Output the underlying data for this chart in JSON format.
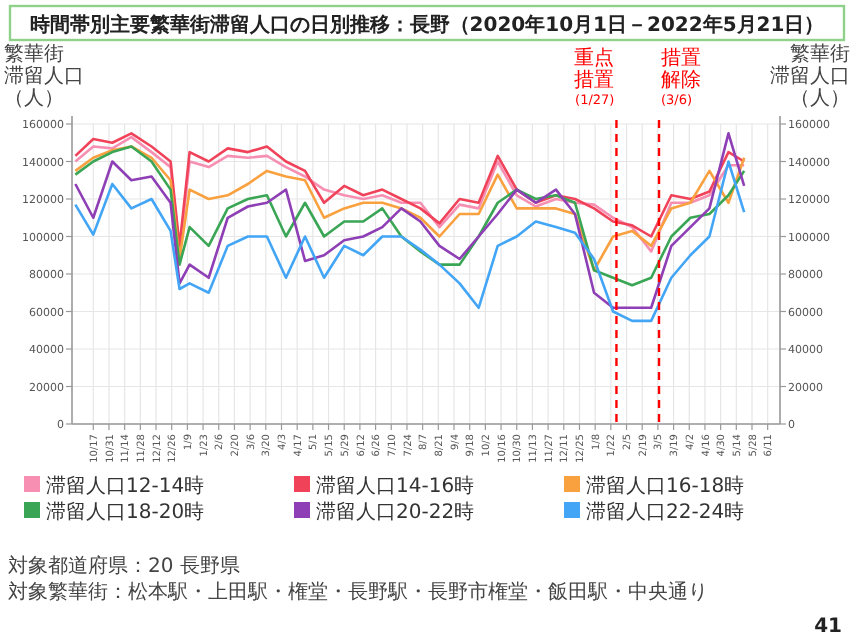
{
  "chart_data": {
    "type": "line",
    "title": "時間帯別主要繁華街滞留人口の日別推移：長野（2020年10月1日－2022年5月21日）",
    "ylabel": "繁華街滞留人口（人）",
    "y2label": "繁華街滞留人口（人）",
    "x": [
      "2020-10-01",
      "2020-10-17",
      "2020-11-03",
      "2020-11-20",
      "2020-12-08",
      "2020-12-25",
      "2021-01-02",
      "2021-01-11",
      "2021-01-28",
      "2021-02-14",
      "2021-03-04",
      "2021-03-21",
      "2021-04-07",
      "2021-04-24",
      "2021-05-11",
      "2021-05-29",
      "2021-06-15",
      "2021-07-02",
      "2021-07-19",
      "2021-08-05",
      "2021-08-22",
      "2021-09-09",
      "2021-09-26",
      "2021-10-13",
      "2021-10-30",
      "2021-11-16",
      "2021-12-04",
      "2021-12-21",
      "2022-01-07",
      "2022-01-24",
      "2022-02-10",
      "2022-02-27",
      "2022-03-17",
      "2022-04-03",
      "2022-04-20",
      "2022-05-07",
      "2022-05-21"
    ],
    "series": [
      {
        "name": "滞留人口12-14時",
        "color": "#f78fb3",
        "values": [
          140000,
          148000,
          147000,
          153000,
          145000,
          137000,
          92000,
          140000,
          137000,
          143000,
          142000,
          143000,
          137000,
          132000,
          125000,
          122000,
          120000,
          122000,
          118000,
          118000,
          105000,
          117000,
          115000,
          140000,
          122000,
          116000,
          120000,
          118000,
          117000,
          110000,
          105000,
          92000,
          118000,
          118000,
          122000,
          138000,
          138000
        ]
      },
      {
        "name": "滞留人口14-16時",
        "color": "#f0435a",
        "values": [
          143000,
          152000,
          150000,
          155000,
          148000,
          140000,
          95000,
          145000,
          140000,
          147000,
          145000,
          148000,
          140000,
          135000,
          118000,
          127000,
          122000,
          125000,
          120000,
          115000,
          107000,
          120000,
          118000,
          143000,
          125000,
          118000,
          122000,
          120000,
          115000,
          108000,
          106000,
          100000,
          122000,
          120000,
          124000,
          145000,
          140000
        ]
      },
      {
        "name": "滞留人口16-18時",
        "color": "#f9a03f",
        "values": [
          135000,
          142000,
          146000,
          148000,
          142000,
          130000,
          88000,
          125000,
          120000,
          122000,
          128000,
          135000,
          132000,
          130000,
          110000,
          115000,
          118000,
          118000,
          115000,
          110000,
          100000,
          112000,
          112000,
          133000,
          115000,
          115000,
          115000,
          112000,
          82000,
          100000,
          103000,
          95000,
          115000,
          118000,
          135000,
          118000,
          142000
        ]
      },
      {
        "name": "滞留人口18-20時",
        "color": "#3aa655",
        "values": [
          133000,
          140000,
          145000,
          148000,
          140000,
          125000,
          85000,
          105000,
          95000,
          115000,
          120000,
          122000,
          100000,
          118000,
          100000,
          108000,
          108000,
          115000,
          100000,
          92000,
          85000,
          85000,
          100000,
          118000,
          125000,
          120000,
          122000,
          118000,
          82000,
          78000,
          74000,
          78000,
          100000,
          110000,
          112000,
          122000,
          135000
        ]
      },
      {
        "name": "滞留人口20-22時",
        "color": "#8e3fb5",
        "values": [
          128000,
          110000,
          140000,
          130000,
          132000,
          118000,
          75000,
          85000,
          78000,
          110000,
          116000,
          118000,
          125000,
          87000,
          90000,
          98000,
          100000,
          105000,
          115000,
          108000,
          95000,
          88000,
          100000,
          112000,
          125000,
          118000,
          125000,
          112000,
          70000,
          62000,
          62000,
          62000,
          95000,
          105000,
          115000,
          155000,
          127000
        ]
      },
      {
        "name": "滞留人口22-24時",
        "color": "#42a5f5",
        "values": [
          117000,
          101000,
          128000,
          115000,
          120000,
          103000,
          72000,
          75000,
          70000,
          95000,
          100000,
          100000,
          78000,
          100000,
          78000,
          95000,
          90000,
          100000,
          100000,
          93000,
          85000,
          75000,
          62000,
          95000,
          100000,
          108000,
          105000,
          102000,
          88000,
          60000,
          55000,
          55000,
          78000,
          90000,
          100000,
          140000,
          113000
        ]
      }
    ],
    "xlim": [
      "2020-09-28",
      "2022-06-22"
    ],
    "xticks": [
      {
        "value": "2020-10-17",
        "label": "10/17"
      },
      {
        "value": "2020-10-31",
        "label": "10/31"
      },
      {
        "value": "2020-11-14",
        "label": "11/14"
      },
      {
        "value": "2020-11-28",
        "label": "11/28"
      },
      {
        "value": "2020-12-12",
        "label": "12/12"
      },
      {
        "value": "2020-12-26",
        "label": "12/26"
      },
      {
        "value": "2021-01-09",
        "label": "1/9"
      },
      {
        "value": "2021-01-23",
        "label": "1/23"
      },
      {
        "value": "2021-02-06",
        "label": "2/6"
      },
      {
        "value": "2021-02-20",
        "label": "2/20"
      },
      {
        "value": "2021-03-06",
        "label": "3/6"
      },
      {
        "value": "2021-03-20",
        "label": "3/20"
      },
      {
        "value": "2021-04-03",
        "label": "4/3"
      },
      {
        "value": "2021-04-17",
        "label": "4/17"
      },
      {
        "value": "2021-05-01",
        "label": "5/1"
      },
      {
        "value": "2021-05-15",
        "label": "5/15"
      },
      {
        "value": "2021-05-29",
        "label": "5/29"
      },
      {
        "value": "2021-06-12",
        "label": "6/12"
      },
      {
        "value": "2021-06-26",
        "label": "6/26"
      },
      {
        "value": "2021-07-10",
        "label": "7/10"
      },
      {
        "value": "2021-07-24",
        "label": "7/24"
      },
      {
        "value": "2021-08-07",
        "label": "8/7"
      },
      {
        "value": "2021-08-21",
        "label": "8/21"
      },
      {
        "value": "2021-09-04",
        "label": "9/4"
      },
      {
        "value": "2021-09-18",
        "label": "9/18"
      },
      {
        "value": "2021-10-02",
        "label": "10/2"
      },
      {
        "value": "2021-10-16",
        "label": "10/16"
      },
      {
        "value": "2021-10-30",
        "label": "10/30"
      },
      {
        "value": "2021-11-13",
        "label": "11/13"
      },
      {
        "value": "2021-11-27",
        "label": "11/27"
      },
      {
        "value": "2021-12-11",
        "label": "12/11"
      },
      {
        "value": "2021-12-25",
        "label": "12/25"
      },
      {
        "value": "2022-01-08",
        "label": "1/8"
      },
      {
        "value": "2022-01-22",
        "label": "1/22"
      },
      {
        "value": "2022-02-05",
        "label": "2/5"
      },
      {
        "value": "2022-02-19",
        "label": "2/19"
      },
      {
        "value": "2022-03-05",
        "label": "3/5"
      },
      {
        "value": "2022-03-19",
        "label": "3/19"
      },
      {
        "value": "2022-04-02",
        "label": "4/2"
      },
      {
        "value": "2022-04-16",
        "label": "4/16"
      },
      {
        "value": "2022-04-30",
        "label": "4/30"
      },
      {
        "value": "2022-05-14",
        "label": "5/14"
      },
      {
        "value": "2022-05-28",
        "label": "5/28"
      },
      {
        "value": "2022-06-11",
        "label": "6/11"
      }
    ],
    "ylim": [
      0,
      160000
    ],
    "yticks": [
      0,
      20000,
      40000,
      60000,
      80000,
      100000,
      120000,
      140000,
      160000
    ],
    "y2lim": [
      0,
      160000
    ],
    "y2ticks": [
      0,
      20000,
      40000,
      60000,
      80000,
      100000,
      120000,
      140000,
      160000
    ],
    "ref_lines": [
      {
        "axis": "x",
        "value": "2022-01-27",
        "label": "重点措置(1/27)",
        "color": "#ff0000",
        "line_style": "dashed"
      },
      {
        "axis": "x",
        "value": "2022-03-06",
        "label": "措置解除(3/6)",
        "color": "#ff0000",
        "line_style": "dashed"
      }
    ],
    "legend": "bottom",
    "grid": true,
    "marker": "none",
    "line_style": "solid",
    "annotations": [
      "対象都道府県：20 長野県",
      "対象繁華街：松本駅・上田駅・権堂・長野駅・長野市権堂・飯田駅・中央通り",
      "41"
    ]
  }
}
